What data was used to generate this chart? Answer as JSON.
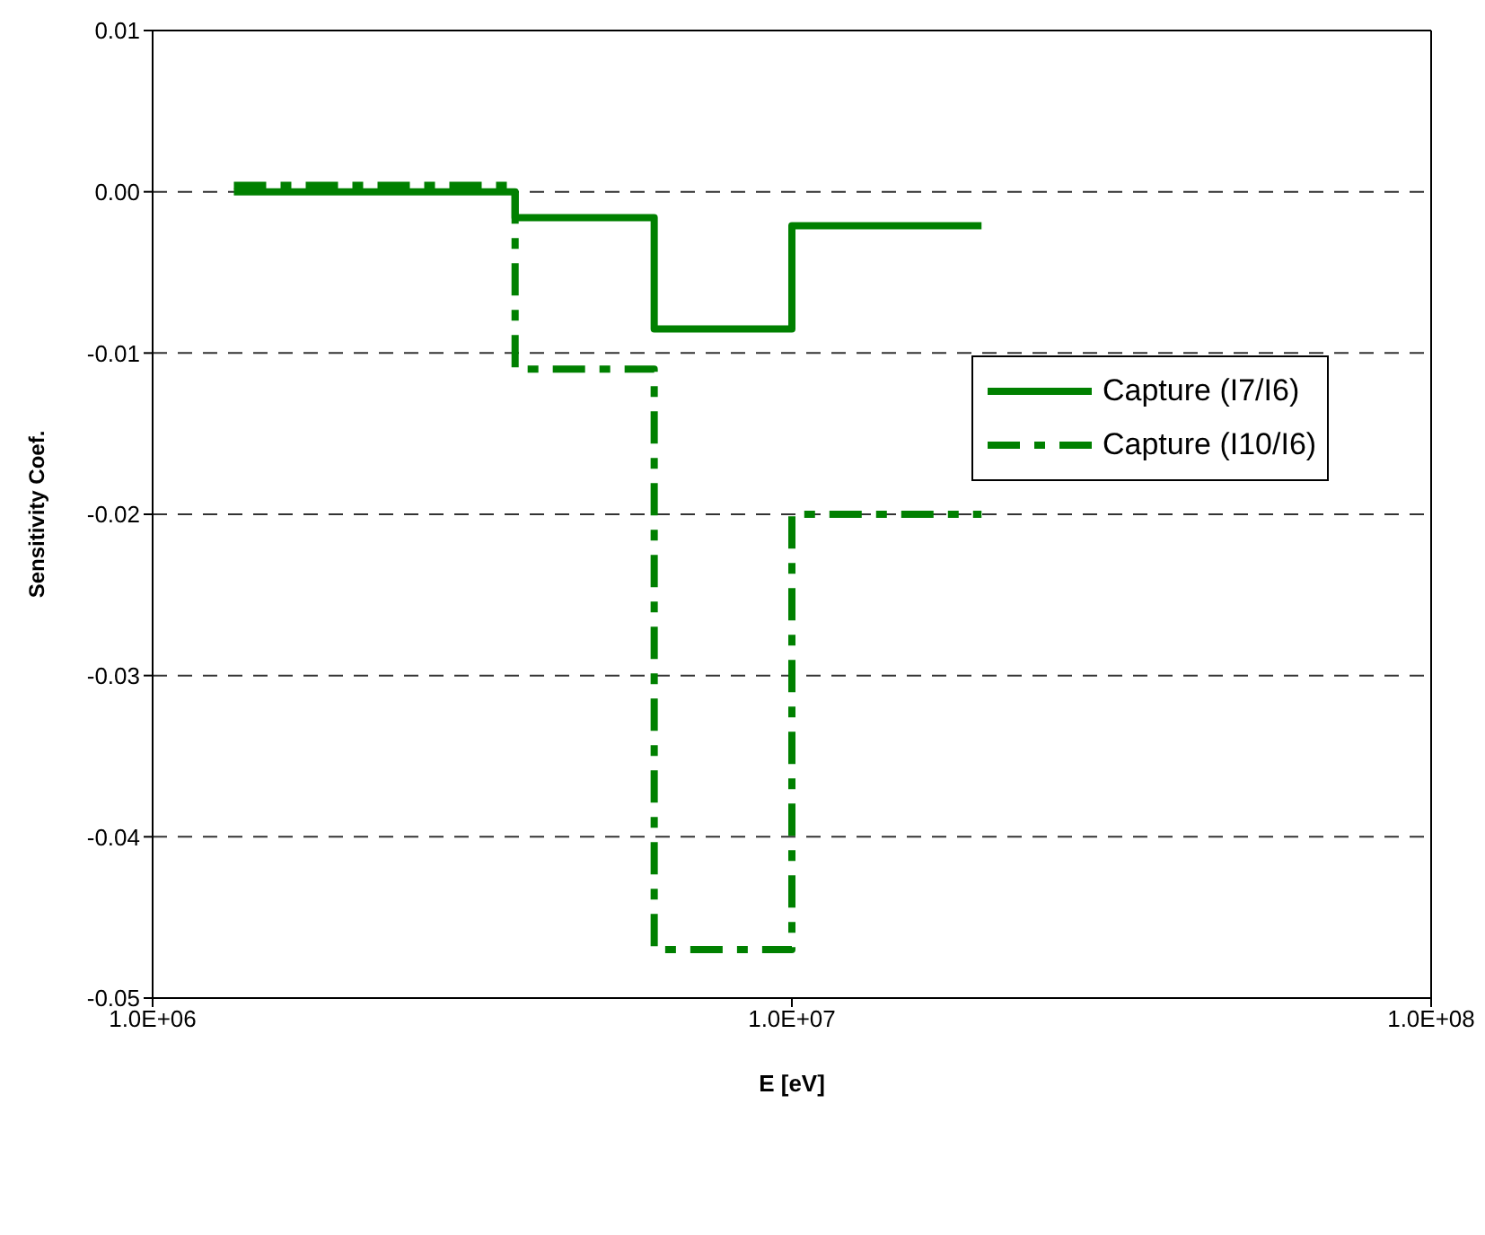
{
  "chart_data": {
    "type": "step",
    "xlabel": "E [eV]",
    "ylabel": "Sensitivity Coef.",
    "log": "x",
    "xlim": [
      1000000,
      100000000
    ],
    "xticks": [
      {
        "value": 1000000,
        "label": "1.0E+06"
      },
      {
        "value": 10000000,
        "label": "1.0E+07"
      },
      {
        "value": 100000000,
        "label": "1.0E+08"
      }
    ],
    "ylim": [
      -0.05,
      0.01
    ],
    "yticks": [
      {
        "value": -0.05,
        "label": "-0.05"
      },
      {
        "value": -0.04,
        "label": "-0.04"
      },
      {
        "value": -0.03,
        "label": "-0.03"
      },
      {
        "value": -0.02,
        "label": "-0.02"
      },
      {
        "value": -0.01,
        "label": "-0.01"
      },
      {
        "value": 0,
        "label": "0.00"
      },
      {
        "value": 0.01,
        "label": "0.01"
      }
    ],
    "grid": "y",
    "legend": "right",
    "marker": "none",
    "x": [
      1340000,
      3690000,
      6090000,
      10000000,
      19800000
    ],
    "series": [
      {
        "name": "Capture (I7/I6)",
        "color": "#008000",
        "line_style": "solid",
        "values": [
          0,
          -0.0016,
          -0.0085,
          -0.0021,
          -0.0021
        ]
      },
      {
        "name": "Capture (I10/I6)",
        "color": "#008000",
        "line_style": "dashed",
        "values": [
          0.0004,
          -0.011,
          -0.047,
          -0.02,
          -0.02
        ]
      }
    ]
  }
}
